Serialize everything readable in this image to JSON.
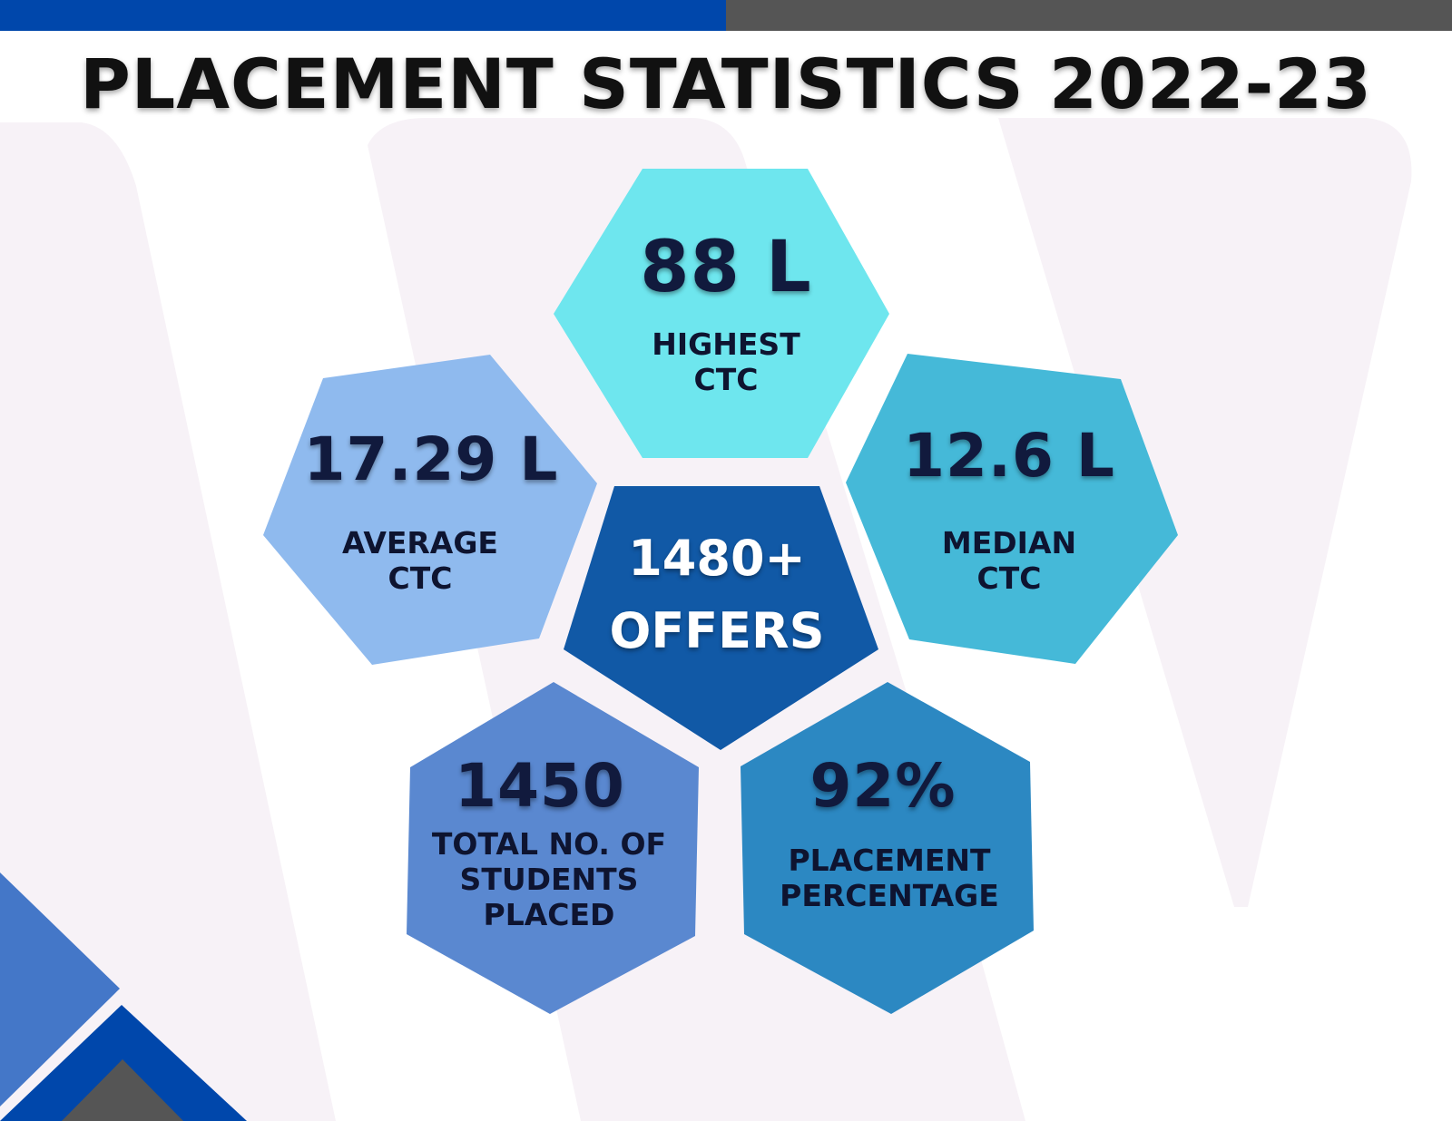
{
  "title": "PLACEMENT STATISTICS 2022-23",
  "colors": {
    "top_bar_left": "#0047ab",
    "top_bar_right": "#555555",
    "highest": "#6ee6ee",
    "average": "#8fbaee",
    "median": "#45b9d8",
    "offers": "#1159a6",
    "students": "#5a88d0",
    "percentage": "#2c88c2"
  },
  "stats": {
    "highest": {
      "value": "88 L",
      "label_lines": [
        "HIGHEST",
        "CTC"
      ]
    },
    "average": {
      "value": "17.29 L",
      "label_lines": [
        "AVERAGE",
        "CTC"
      ]
    },
    "median": {
      "value": "12.6 L",
      "label_lines": [
        "MEDIAN",
        "CTC"
      ]
    },
    "offers": {
      "value": "1480+",
      "label": "OFFERS"
    },
    "students": {
      "value": "1450",
      "label_lines": [
        "TOTAL NO. OF",
        "STUDENTS",
        "PLACED"
      ]
    },
    "percentage": {
      "value": "92%",
      "label_lines": [
        "PLACEMENT",
        "PERCENTAGE"
      ]
    }
  }
}
